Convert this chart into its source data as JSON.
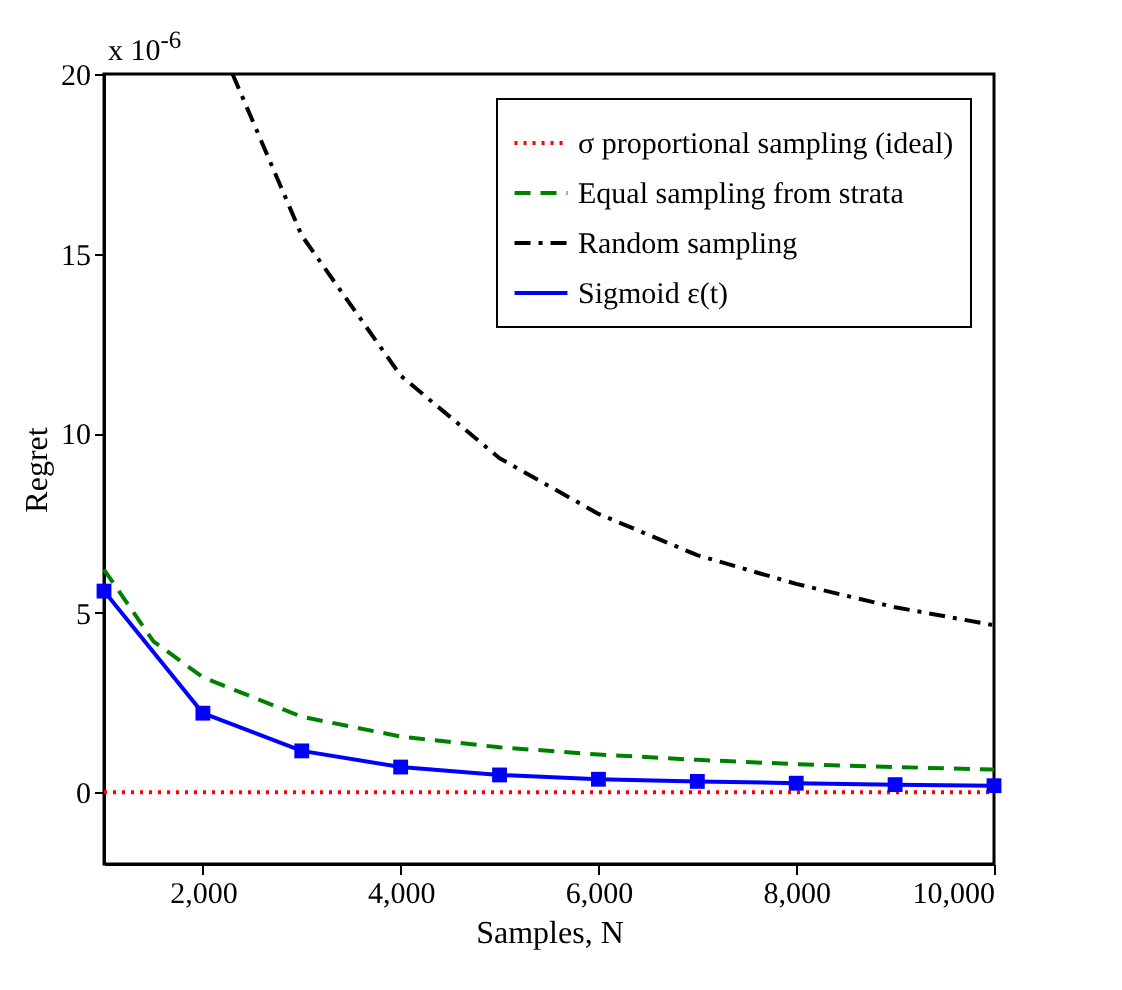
{
  "chart_data": {
    "type": "line",
    "xlabel": "Samples, N",
    "ylabel": "Regret",
    "annotations": [
      "x 10$^{-6}$"
    ],
    "xlim": [
      1000,
      10000
    ],
    "ylim": [
      -2,
      20
    ],
    "xticks": [
      {
        "value": 2000,
        "label": "2,000"
      },
      {
        "value": 4000,
        "label": "4,000"
      },
      {
        "value": 6000,
        "label": "6,000"
      },
      {
        "value": 8000,
        "label": "8,000"
      },
      {
        "value": 10000,
        "label": "10,000"
      }
    ],
    "yticks": [
      0,
      5,
      10,
      15,
      20
    ],
    "legend": "top right",
    "grid": false,
    "series": [
      {
        "name": "σ proportional sampling (ideal)",
        "color": "#ff0000",
        "line_style": "dotted",
        "x": [
          1000,
          10000
        ],
        "values": [
          0,
          0
        ]
      },
      {
        "name": "Equal sampling from strata",
        "color": "#008000",
        "line_style": "dashed",
        "x": [
          1000,
          1500,
          2000,
          3000,
          4000,
          5000,
          6000,
          7000,
          8000,
          9000,
          10000
        ],
        "values": [
          6.2,
          4.2,
          3.2,
          2.1,
          1.55,
          1.25,
          1.05,
          0.9,
          0.78,
          0.7,
          0.63
        ]
      },
      {
        "name": "Random sampling",
        "color": "#000000",
        "line_style": "dashdot",
        "x": [
          2300,
          3000,
          4000,
          5000,
          6000,
          7000,
          8000,
          9000,
          10000
        ],
        "values": [
          20,
          15.5,
          11.6,
          9.3,
          7.75,
          6.6,
          5.8,
          5.15,
          4.65
        ]
      },
      {
        "name": "Sigmoid ε(t)",
        "color": "#0000ff",
        "line_style": "solid",
        "marker": "square",
        "x": [
          1000,
          2000,
          3000,
          4000,
          5000,
          6000,
          7000,
          8000,
          9000,
          10000
        ],
        "values": [
          5.6,
          2.2,
          1.15,
          0.7,
          0.48,
          0.36,
          0.3,
          0.25,
          0.21,
          0.18
        ]
      }
    ]
  }
}
